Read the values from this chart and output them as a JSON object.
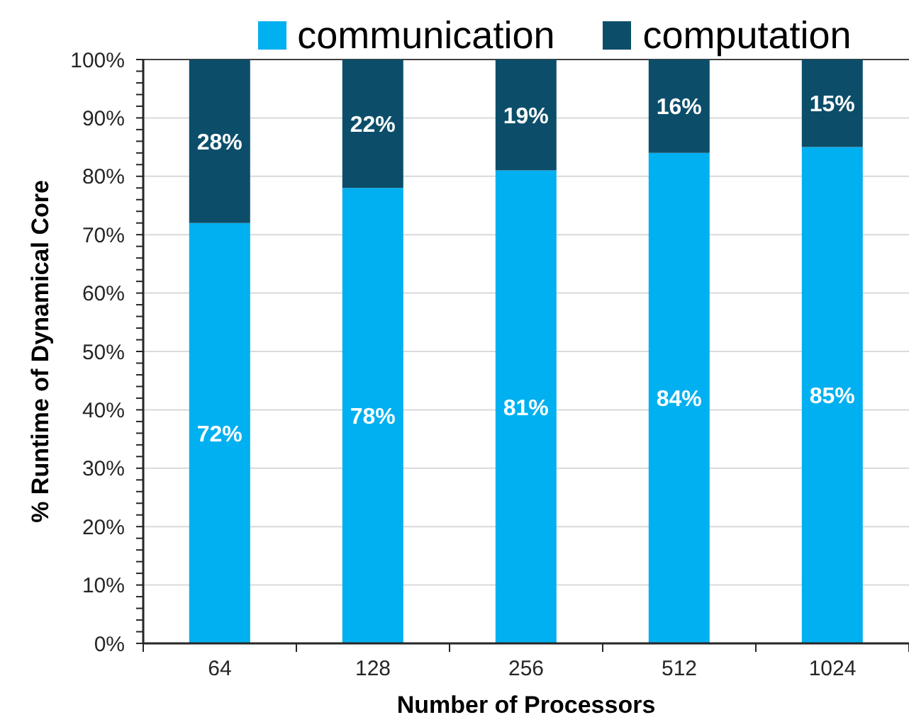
{
  "chart_data": {
    "type": "bar",
    "stacked": true,
    "categories": [
      "64",
      "128",
      "256",
      "512",
      "1024"
    ],
    "xlabel": "Number of Processors",
    "ylabel": "% Runtime of Dynamical Core",
    "ylim": [
      0,
      100
    ],
    "yticks": [
      {
        "value": 0,
        "label": "0%"
      },
      {
        "value": 2,
        "label": null
      },
      {
        "value": 4,
        "label": null
      },
      {
        "value": 6,
        "label": null
      },
      {
        "value": 8,
        "label": null
      },
      {
        "value": 10,
        "label": "10%"
      },
      {
        "value": 12,
        "label": null
      },
      {
        "value": 14,
        "label": null
      },
      {
        "value": 16,
        "label": null
      },
      {
        "value": 18,
        "label": null
      },
      {
        "value": 20,
        "label": "20%"
      },
      {
        "value": 22,
        "label": null
      },
      {
        "value": 24,
        "label": null
      },
      {
        "value": 26,
        "label": null
      },
      {
        "value": 28,
        "label": null
      },
      {
        "value": 30,
        "label": "30%"
      },
      {
        "value": 32,
        "label": null
      },
      {
        "value": 34,
        "label": null
      },
      {
        "value": 36,
        "label": null
      },
      {
        "value": 38,
        "label": null
      },
      {
        "value": 40,
        "label": "40%"
      },
      {
        "value": 42,
        "label": null
      },
      {
        "value": 44,
        "label": null
      },
      {
        "value": 46,
        "label": null
      },
      {
        "value": 48,
        "label": null
      },
      {
        "value": 50,
        "label": "50%"
      },
      {
        "value": 52,
        "label": null
      },
      {
        "value": 54,
        "label": null
      },
      {
        "value": 56,
        "label": null
      },
      {
        "value": 58,
        "label": null
      },
      {
        "value": 60,
        "label": "60%"
      },
      {
        "value": 62,
        "label": null
      },
      {
        "value": 64,
        "label": null
      },
      {
        "value": 66,
        "label": null
      },
      {
        "value": 68,
        "label": null
      },
      {
        "value": 70,
        "label": "70%"
      },
      {
        "value": 72,
        "label": null
      },
      {
        "value": 74,
        "label": null
      },
      {
        "value": 76,
        "label": null
      },
      {
        "value": 78,
        "label": null
      },
      {
        "value": 80,
        "label": "80%"
      },
      {
        "value": 82,
        "label": null
      },
      {
        "value": 84,
        "label": null
      },
      {
        "value": 86,
        "label": null
      },
      {
        "value": 88,
        "label": null
      },
      {
        "value": 90,
        "label": "90%"
      },
      {
        "value": 92,
        "label": null
      },
      {
        "value": 94,
        "label": null
      },
      {
        "value": 96,
        "label": null
      },
      {
        "value": 98,
        "label": null
      },
      {
        "value": 100,
        "label": "100%"
      }
    ],
    "grid": "y",
    "legend": "top",
    "series": [
      {
        "name": "communication",
        "color": "#00b0f0",
        "values": [
          72,
          78,
          81,
          84,
          85
        ],
        "value_labels": [
          "72%",
          "78%",
          "81%",
          "84%",
          "85%"
        ]
      },
      {
        "name": "computation",
        "color": "#0c4e6a",
        "values": [
          28,
          22,
          19,
          16,
          15
        ],
        "value_labels": [
          "28%",
          "22%",
          "19%",
          "16%",
          "15%"
        ]
      }
    ]
  }
}
